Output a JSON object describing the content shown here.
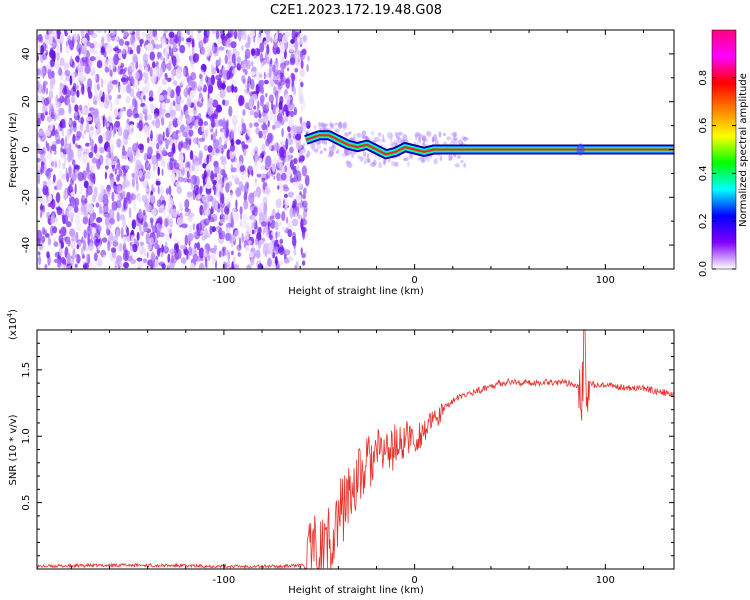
{
  "title": "C2E1.2023.172.19.48.G08",
  "chart_data": [
    {
      "type": "heatmap",
      "xlabel": "Height of straight line (km)",
      "ylabel": "Frequency (Hz)",
      "xlim": [
        -198,
        136
      ],
      "ylim": [
        -50,
        50
      ],
      "xticks": [
        -100,
        0,
        100
      ],
      "yticks": [
        -40,
        -20,
        0,
        20,
        40
      ],
      "xtick_labels": [
        "-100",
        "0",
        "100"
      ],
      "ytick_labels": [
        "-40",
        "-20",
        "0",
        "20",
        "40"
      ],
      "noise_region_x": [
        -198,
        -58
      ],
      "signal_start_x": -58,
      "signal_line_freq": 0,
      "ridge": [
        {
          "x": -57,
          "y": 4
        },
        {
          "x": -50,
          "y": 6
        },
        {
          "x": -45,
          "y": 6
        },
        {
          "x": -40,
          "y": 4
        },
        {
          "x": -35,
          "y": 2
        },
        {
          "x": -30,
          "y": 1
        },
        {
          "x": -25,
          "y": 2
        },
        {
          "x": -20,
          "y": 0
        },
        {
          "x": -15,
          "y": -2
        },
        {
          "x": -10,
          "y": -1
        },
        {
          "x": -5,
          "y": 1
        },
        {
          "x": 0,
          "y": 0
        },
        {
          "x": 5,
          "y": -1
        },
        {
          "x": 10,
          "y": 0
        },
        {
          "x": 136,
          "y": 0
        }
      ],
      "colorbar": {
        "label": "Normalized spectral amplitude",
        "range": [
          0,
          1
        ],
        "ticks": [
          0.0,
          0.2,
          0.4,
          0.6,
          0.8
        ],
        "tick_labels": [
          "0.0",
          "0.2",
          "0.4",
          "0.6",
          "0.8"
        ],
        "colors": [
          "#ffffff",
          "#8000ff",
          "#0000ff",
          "#00ffff",
          "#00ff00",
          "#ffff00",
          "#ff8000",
          "#ff0000",
          "#ff00ff",
          "#ff0080"
        ]
      }
    },
    {
      "type": "line",
      "xlabel": "Height of straight line (km)",
      "ylabel": "SNR (10 * v/v)",
      "scale_note": "(x10",
      "scale_exp": "4",
      "scale_close": ")",
      "xlim": [
        -198,
        136
      ],
      "ylim": [
        0,
        1.8
      ],
      "xticks": [
        -100,
        0,
        100
      ],
      "yticks": [
        0.5,
        1.0,
        1.5
      ],
      "xtick_labels": [
        "-100",
        "0",
        "100"
      ],
      "ytick_labels": [
        "0.5",
        "1.0",
        "1.5"
      ],
      "color": "#e8302a",
      "series": [
        {
          "x": [
            -198,
            -150,
            -100,
            -70,
            -58,
            -50,
            -45,
            -42,
            -40,
            -38,
            -35,
            -32,
            -30,
            -28,
            -25,
            -22,
            -20,
            -18,
            -15,
            -12,
            -10,
            -8,
            -5,
            -2,
            0,
            3,
            5,
            8,
            10,
            13,
            15,
            20,
            25,
            30,
            35,
            40,
            45,
            50,
            60,
            70,
            80,
            85,
            88,
            90,
            92,
            95,
            100,
            110,
            120,
            130,
            136
          ],
          "y": [
            0.02,
            0.03,
            0.02,
            0.02,
            0.03,
            0.1,
            0.22,
            0.3,
            0.38,
            0.45,
            0.55,
            0.62,
            0.7,
            0.68,
            0.8,
            0.82,
            0.85,
            0.88,
            0.9,
            0.88,
            0.95,
            0.92,
            0.98,
            1.0,
            0.95,
            1.02,
            1.05,
            1.08,
            1.12,
            1.15,
            1.2,
            1.27,
            1.3,
            1.33,
            1.35,
            1.38,
            1.4,
            1.41,
            1.4,
            1.41,
            1.4,
            1.39,
            1.36,
            1.37,
            1.4,
            1.38,
            1.38,
            1.37,
            1.36,
            1.33,
            1.31
          ]
        }
      ]
    }
  ]
}
